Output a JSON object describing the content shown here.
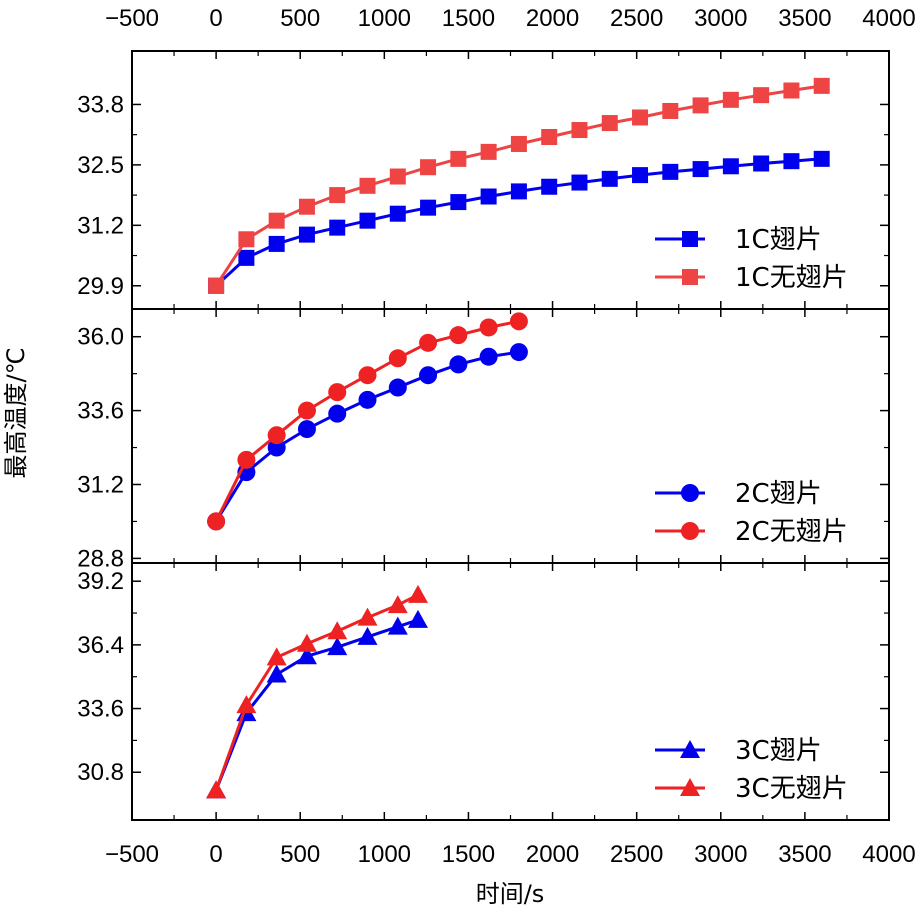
{
  "chart_data": {
    "type": "line",
    "xlabel": "时间/s",
    "ylabel": "最高温度/℃",
    "x_ticks": [
      -500,
      0,
      500,
      1000,
      1500,
      2000,
      2500,
      3000,
      3500,
      4000
    ],
    "x_tick_labels": [
      "−500",
      "0",
      "500",
      "1000",
      "1500",
      "2000",
      "2500",
      "3000",
      "3500",
      "4000"
    ],
    "xlim": [
      -500,
      4000
    ],
    "colors": {
      "blue": "#0000ee",
      "red": "#ee2222",
      "red_light": "#ee4444"
    },
    "panels": [
      {
        "ylim": [
          29.4,
          34.95
        ],
        "y_ticks": [
          29.9,
          31.2,
          32.5,
          33.8
        ],
        "y_tick_labels": [
          "29.9",
          "31.2",
          "32.5",
          "33.8"
        ],
        "marker": "square",
        "series": [
          {
            "name": "1C翅片",
            "color": "#0000ee",
            "x": [
              0,
              180,
              360,
              540,
              720,
              900,
              1080,
              1260,
              1440,
              1620,
              1800,
              1980,
              2160,
              2340,
              2520,
              2700,
              2880,
              3060,
              3240,
              3420,
              3600
            ],
            "y": [
              29.9,
              30.5,
              30.8,
              31.0,
              31.15,
              31.3,
              31.45,
              31.58,
              31.7,
              31.82,
              31.93,
              32.03,
              32.12,
              32.2,
              32.28,
              32.35,
              32.41,
              32.47,
              32.53,
              32.58,
              32.63
            ]
          },
          {
            "name": "1C无翅片",
            "color": "#ee4444",
            "x": [
              0,
              180,
              360,
              540,
              720,
              900,
              1080,
              1260,
              1440,
              1620,
              1800,
              1980,
              2160,
              2340,
              2520,
              2700,
              2880,
              3060,
              3240,
              3420,
              3600
            ],
            "y": [
              29.9,
              30.9,
              31.3,
              31.6,
              31.85,
              32.05,
              32.25,
              32.45,
              32.63,
              32.78,
              32.95,
              33.1,
              33.25,
              33.4,
              33.52,
              33.66,
              33.78,
              33.9,
              34.0,
              34.1,
              34.2
            ]
          }
        ]
      },
      {
        "ylim": [
          28.65,
          36.9
        ],
        "y_ticks": [
          28.8,
          31.2,
          33.6,
          36.0
        ],
        "y_tick_labels": [
          "28.8",
          "31.2",
          "33.6",
          "36.0"
        ],
        "marker": "circle",
        "series": [
          {
            "name": "2C翅片",
            "color": "#0000ee",
            "x": [
              0,
              180,
              360,
              540,
              720,
              900,
              1080,
              1260,
              1440,
              1620,
              1800
            ],
            "y": [
              30.0,
              31.6,
              32.4,
              33.0,
              33.5,
              33.95,
              34.35,
              34.75,
              35.1,
              35.35,
              35.5
            ]
          },
          {
            "name": "2C无翅片",
            "color": "#ee2222",
            "x": [
              0,
              180,
              360,
              540,
              720,
              900,
              1080,
              1260,
              1440,
              1620,
              1800
            ],
            "y": [
              30.0,
              32.0,
              32.8,
              33.6,
              34.2,
              34.75,
              35.3,
              35.8,
              36.05,
              36.3,
              36.5
            ]
          }
        ]
      },
      {
        "ylim": [
          28.7,
          40.0
        ],
        "y_ticks": [
          30.8,
          33.6,
          36.4,
          39.2
        ],
        "y_tick_labels": [
          "30.8",
          "33.6",
          "36.4",
          "39.2"
        ],
        "marker": "triangle",
        "series": [
          {
            "name": "3C翅片",
            "color": "#0000ee",
            "x": [
              0,
              180,
              360,
              540,
              720,
              900,
              1080,
              1200
            ],
            "y": [
              30.0,
              33.4,
              35.1,
              35.9,
              36.3,
              36.75,
              37.2,
              37.5
            ]
          },
          {
            "name": "3C无翅片",
            "color": "#ee2222",
            "x": [
              0,
              180,
              360,
              540,
              720,
              900,
              1080,
              1200
            ],
            "y": [
              30.0,
              33.75,
              35.85,
              36.45,
              37.0,
              37.6,
              38.15,
              38.6
            ]
          }
        ]
      }
    ]
  }
}
